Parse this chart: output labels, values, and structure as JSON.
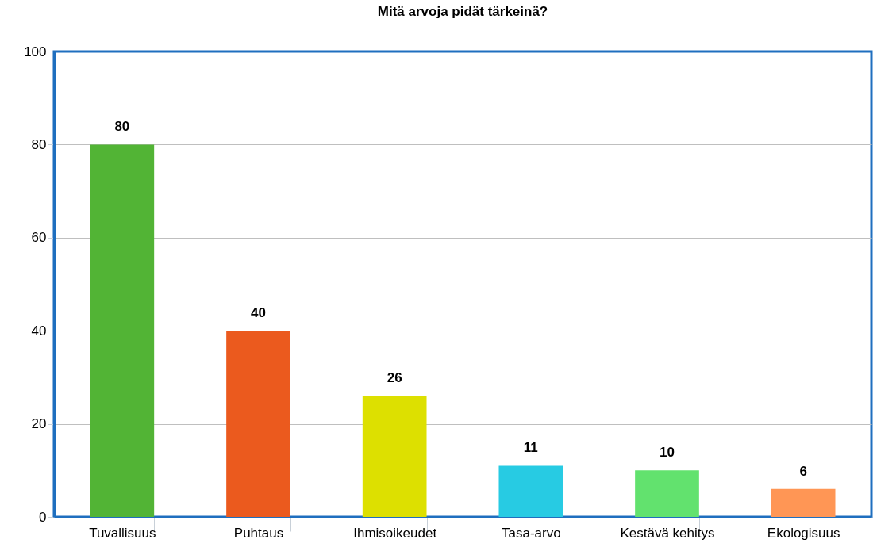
{
  "chart_data": {
    "type": "bar",
    "title": "Mitä arvoja pidät tärkeinä?",
    "categories": [
      "Tuvallisuus",
      "Puhtaus",
      "Ihmisoikeudet",
      "Tasa-arvo",
      "Kestävä kehitys",
      "Ekologisuus"
    ],
    "values": [
      80,
      40,
      26,
      11,
      10,
      6
    ],
    "colors": [
      "#52b435",
      "#eb5a1e",
      "#dde000",
      "#27cbe3",
      "#62e26e",
      "#ff9655"
    ],
    "ylim": [
      0,
      100
    ],
    "yticks": [
      0,
      20,
      40,
      60,
      80,
      100
    ],
    "grid": "y",
    "data_labels": true
  }
}
